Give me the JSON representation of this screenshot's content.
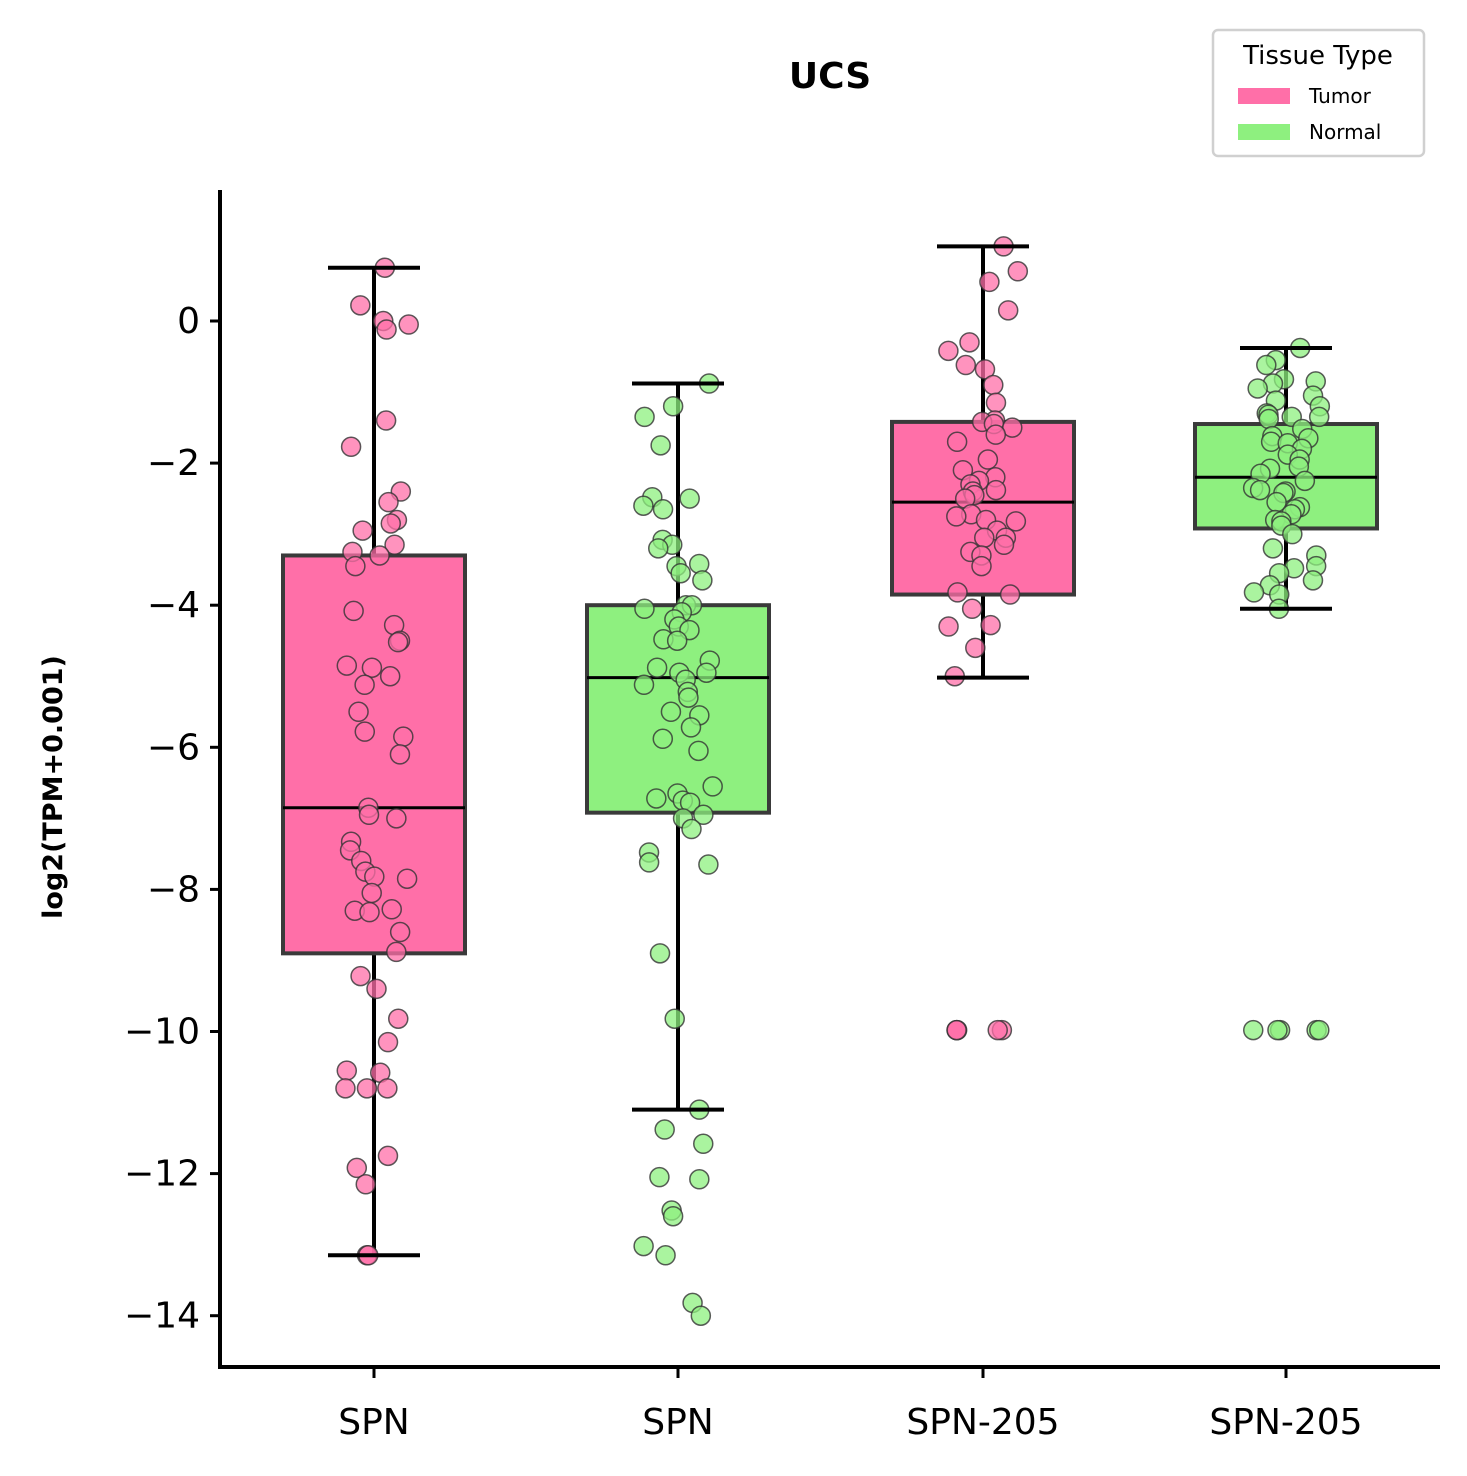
{
  "chart_data": {
    "type": "box",
    "title": "UCS",
    "xlabel": "",
    "ylabel": "log2(TPM+0.001)",
    "ylim": [
      -14.75,
      1.8
    ],
    "yticks": [
      0,
      -2,
      -4,
      -6,
      -8,
      -10,
      -12,
      -14
    ],
    "ytick_labels": [
      "0",
      "−2",
      "−4",
      "−6",
      "−8",
      "−10",
      "−12",
      "−14"
    ],
    "categories": [
      "SPN",
      "SPN",
      "SPN-205",
      "SPN-205"
    ],
    "legend": {
      "title": "Tissue Type",
      "position": "top-right",
      "entries": [
        {
          "label": "Tumor",
          "color": "#ff6fa8"
        },
        {
          "label": "Normal",
          "color": "#8ef07f"
        }
      ]
    },
    "groups": [
      {
        "category": "SPN",
        "tissue": "Tumor",
        "color": "#ff6fa8",
        "whisker_low": -13.15,
        "q1": -8.9,
        "median": -6.85,
        "q3": -3.3,
        "whisker_high": 0.75,
        "points": [
          0.75,
          0.22,
          0.0,
          -0.05,
          -0.12,
          -1.4,
          -1.77,
          -2.4,
          -2.55,
          -2.8,
          -2.85,
          -2.95,
          -3.15,
          -3.25,
          -3.3,
          -3.45,
          -4.08,
          -4.28,
          -4.5,
          -4.52,
          -4.85,
          -4.88,
          -5.0,
          -5.12,
          -5.5,
          -5.78,
          -5.85,
          -6.1,
          -6.85,
          -6.95,
          -7.0,
          -7.33,
          -7.45,
          -7.6,
          -7.75,
          -7.82,
          -7.85,
          -8.05,
          -8.28,
          -8.3,
          -8.32,
          -8.6,
          -8.88,
          -9.22,
          -9.4,
          -9.82,
          -10.15,
          -10.55,
          -10.58,
          -10.8,
          -10.8,
          -10.8,
          -11.75,
          -11.92,
          -12.15,
          -13.15,
          -13.15
        ]
      },
      {
        "category": "SPN",
        "tissue": "Normal",
        "color": "#8ef07f",
        "whisker_low": -11.1,
        "q1": -6.92,
        "median": -5.02,
        "q3": -4.0,
        "whisker_high": -0.88,
        "points": [
          -0.88,
          -1.2,
          -1.35,
          -1.75,
          -2.48,
          -2.5,
          -2.6,
          -2.65,
          -3.08,
          -3.15,
          -3.2,
          -3.42,
          -3.45,
          -3.55,
          -3.65,
          -4.0,
          -4.0,
          -4.05,
          -4.1,
          -4.2,
          -4.3,
          -4.35,
          -4.48,
          -4.5,
          -4.78,
          -4.88,
          -4.95,
          -4.95,
          -5.05,
          -5.12,
          -5.22,
          -5.3,
          -5.5,
          -5.55,
          -5.72,
          -5.88,
          -6.05,
          -6.55,
          -6.65,
          -6.72,
          -6.75,
          -6.78,
          -6.95,
          -7.0,
          -7.15,
          -7.48,
          -7.65,
          -7.62,
          -8.9,
          -9.82,
          -11.1,
          -11.38,
          -11.58,
          -12.05,
          -12.08,
          -12.52,
          -12.6,
          -13.02,
          -13.15,
          -13.82,
          -14.0
        ]
      },
      {
        "category": "SPN-205",
        "tissue": "Tumor",
        "color": "#ff6fa8",
        "whisker_low": -5.02,
        "q1": -3.85,
        "median": -2.55,
        "q3": -1.42,
        "whisker_high": 1.05,
        "points": [
          1.05,
          0.7,
          0.55,
          0.15,
          -0.3,
          -0.42,
          -0.62,
          -0.68,
          -0.9,
          -1.15,
          -1.4,
          -1.42,
          -1.45,
          -1.5,
          -1.6,
          -1.7,
          -1.95,
          -2.1,
          -2.2,
          -2.25,
          -2.3,
          -2.38,
          -2.4,
          -2.45,
          -2.5,
          -2.72,
          -2.75,
          -2.8,
          -2.82,
          -2.95,
          -3.05,
          -3.05,
          -3.15,
          -3.25,
          -3.3,
          -3.45,
          -3.82,
          -3.85,
          -4.05,
          -4.3,
          -4.28,
          -4.6,
          -5.0,
          -9.98,
          -9.98,
          -9.98,
          -9.98,
          -9.98
        ]
      },
      {
        "category": "SPN-205",
        "tissue": "Normal",
        "color": "#8ef07f",
        "whisker_low": -4.05,
        "q1": -2.92,
        "median": -2.2,
        "q3": -1.45,
        "whisker_high": -0.38,
        "points": [
          -0.38,
          -0.55,
          -0.62,
          -0.82,
          -0.85,
          -0.88,
          -0.95,
          -1.05,
          -1.12,
          -1.2,
          -1.3,
          -1.32,
          -1.35,
          -1.35,
          -1.38,
          -1.52,
          -1.62,
          -1.65,
          -1.7,
          -1.72,
          -1.8,
          -1.88,
          -1.95,
          -2.05,
          -2.08,
          -2.15,
          -2.25,
          -2.35,
          -2.38,
          -2.4,
          -2.42,
          -2.55,
          -2.62,
          -2.65,
          -2.72,
          -2.8,
          -2.82,
          -2.88,
          -3.0,
          -3.2,
          -3.3,
          -3.45,
          -3.48,
          -3.55,
          -3.65,
          -3.72,
          -3.82,
          -3.85,
          -4.05,
          -9.98,
          -9.98,
          -9.98,
          -9.98,
          -9.98
        ]
      }
    ]
  }
}
